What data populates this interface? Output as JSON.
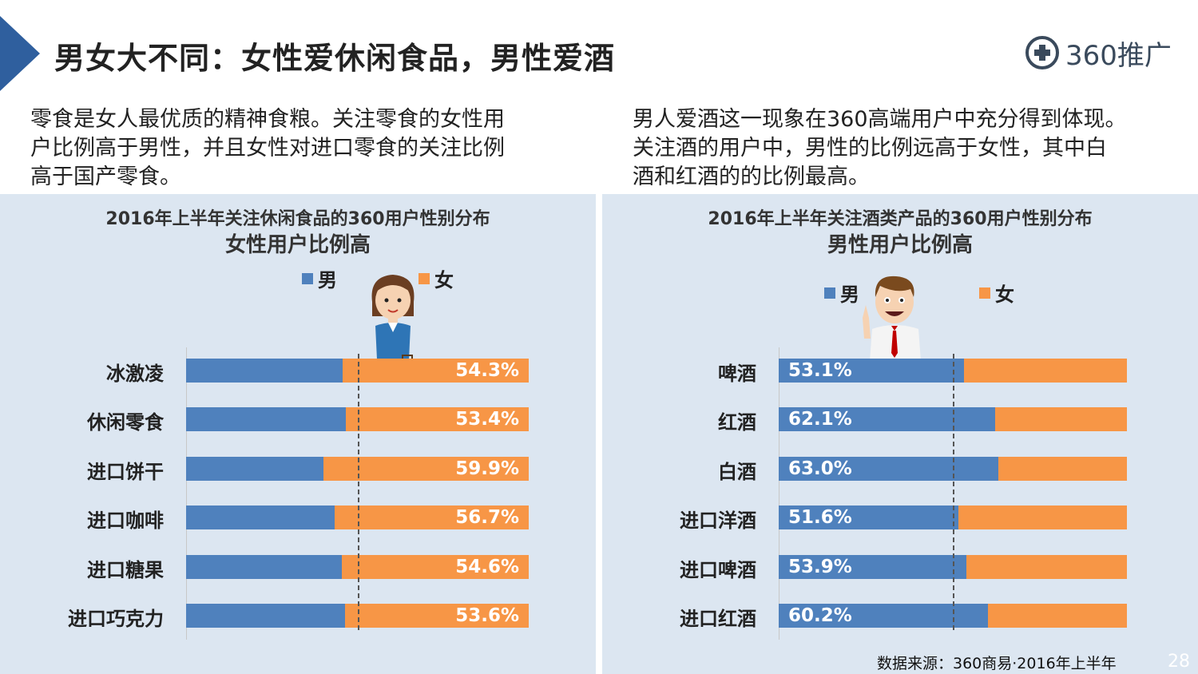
{
  "title": "男女大不同：女性爱休闲食品，男性爱酒",
  "logo": {
    "icon": "plus-circle-icon",
    "text": "360推广"
  },
  "desc_left": [
    "零食是女人最优质的精神食粮。关注零食的女性用",
    "户比例高于男性，并且女性对进口零食的关注比例",
    "高于国产零食。"
  ],
  "desc_right": [
    "男人爱酒这一现象在360高端用户中充分得到体现。",
    "关注酒的用户中，男性的比例远高于女性，其中白",
    "酒和红酒的的比例最高。"
  ],
  "footer": "数据来源：360商易·2016年上半年",
  "page_number": "28",
  "colors": {
    "male": "#4f81bd",
    "female": "#f79646",
    "panel_bg": "#dce6f1",
    "accent": "#2f5f9e"
  },
  "chart_data": [
    {
      "type": "bar",
      "stacked": true,
      "orientation": "horizontal",
      "title": "2016年上半年关注休闲食品的360用户性别分布",
      "subtitle": "女性用户比例高",
      "legend": [
        "男",
        "女"
      ],
      "categories": [
        "冰激凌",
        "休闲零食",
        "进口饼干",
        "进口咖啡",
        "进口糖果",
        "进口巧克力"
      ],
      "series": [
        {
          "name": "男",
          "values": [
            45.7,
            46.6,
            40.1,
            43.3,
            45.4,
            46.4
          ]
        },
        {
          "name": "女",
          "values": [
            54.3,
            53.4,
            59.9,
            56.7,
            54.6,
            53.6
          ]
        }
      ],
      "labels": [
        "54.3%",
        "53.4%",
        "59.9%",
        "56.7%",
        "54.6%",
        "53.6%"
      ],
      "labeled_series": "女",
      "reference_line": 50,
      "xlim": [
        0,
        100
      ]
    },
    {
      "type": "bar",
      "stacked": true,
      "orientation": "horizontal",
      "title": "2016年上半年关注酒类产品的360用户性别分布",
      "subtitle": "男性用户比例高",
      "legend": [
        "男",
        "女"
      ],
      "categories": [
        "啤酒",
        "红酒",
        "白酒",
        "进口洋酒",
        "进口啤酒",
        "进口红酒"
      ],
      "series": [
        {
          "name": "男",
          "values": [
            53.1,
            62.1,
            63.0,
            51.6,
            53.9,
            60.2
          ]
        },
        {
          "name": "女",
          "values": [
            46.9,
            37.9,
            37.0,
            48.4,
            46.1,
            39.8
          ]
        }
      ],
      "labels": [
        "53.1%",
        "62.1%",
        "63.0%",
        "51.6%",
        "53.9%",
        "60.2%"
      ],
      "labeled_series": "男",
      "reference_line": 50,
      "xlim": [
        0,
        100
      ]
    }
  ]
}
